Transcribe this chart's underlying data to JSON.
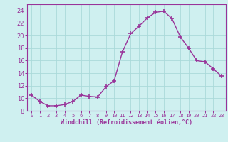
{
  "x": [
    0,
    1,
    2,
    3,
    4,
    5,
    6,
    7,
    8,
    9,
    10,
    11,
    12,
    13,
    14,
    15,
    16,
    17,
    18,
    19,
    20,
    21,
    22,
    23
  ],
  "y": [
    10.5,
    9.5,
    8.8,
    8.8,
    9.0,
    9.5,
    10.5,
    10.3,
    10.2,
    11.8,
    12.8,
    17.4,
    20.3,
    21.5,
    22.8,
    23.7,
    23.9,
    22.7,
    19.8,
    18.0,
    16.0,
    15.8,
    14.7,
    13.5
  ],
  "line_color": "#993399",
  "marker": "+",
  "marker_size": 4,
  "linewidth": 1.0,
  "bg_color": "#cff0f0",
  "grid_color": "#aadada",
  "xlabel": "Windchill (Refroidissement éolien,°C)",
  "xlabel_color": "#993399",
  "tick_color": "#993399",
  "ylim": [
    8,
    25
  ],
  "xlim": [
    -0.5,
    23.5
  ],
  "yticks": [
    8,
    10,
    12,
    14,
    16,
    18,
    20,
    22,
    24
  ],
  "xticks": [
    0,
    1,
    2,
    3,
    4,
    5,
    6,
    7,
    8,
    9,
    10,
    11,
    12,
    13,
    14,
    15,
    16,
    17,
    18,
    19,
    20,
    21,
    22,
    23
  ],
  "xtick_labels": [
    "0",
    "1",
    "2",
    "3",
    "4",
    "5",
    "6",
    "7",
    "8",
    "9",
    "10",
    "11",
    "12",
    "13",
    "14",
    "15",
    "16",
    "17",
    "18",
    "19",
    "20",
    "21",
    "22",
    "23"
  ]
}
